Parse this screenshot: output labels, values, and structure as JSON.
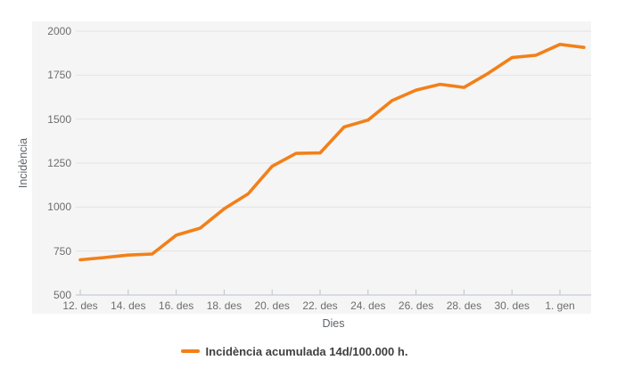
{
  "chart_data": {
    "type": "line",
    "title": "",
    "xlabel": "Dies",
    "ylabel": "Incidència",
    "x": [
      "12. des",
      "13. des",
      "14. des",
      "15. des",
      "16. des",
      "17. des",
      "18. des",
      "19. des",
      "20. des",
      "21. des",
      "22. des",
      "23. des",
      "24. des",
      "25. des",
      "26. des",
      "27. des",
      "28. des",
      "29. des",
      "30. des",
      "31. des",
      "1. gen",
      "2. gen"
    ],
    "series": [
      {
        "name": "Incidència acumulada 14d/100.000 h.",
        "color": "#f28019",
        "values": [
          700,
          713,
          727,
          733,
          840,
          880,
          990,
          1075,
          1232,
          1305,
          1308,
          1455,
          1495,
          1605,
          1665,
          1698,
          1680,
          1760,
          1850,
          1863,
          1925,
          1908
        ]
      }
    ],
    "y_ticks": [
      500,
      750,
      1000,
      1250,
      1500,
      1750,
      2000
    ],
    "x_tick_labels": [
      "12. des",
      "14. des",
      "16. des",
      "18. des",
      "20. des",
      "22. des",
      "24. des",
      "26. des",
      "28. des",
      "30. des",
      "1. gen"
    ],
    "ylim": [
      500,
      2000
    ],
    "grid": "horizontal",
    "legend_position": "bottom"
  },
  "legend": {
    "label": "Incidència acumulada 14d/100.000 h."
  },
  "colors": {
    "line": "#f28019",
    "grid": "#e3e3e3",
    "axis": "#b9c3cf",
    "panel_bg": "#f5f5f5",
    "tick_text": "#6d6d6d",
    "axis_title_text": "#5f6368",
    "legend_text": "#3f3f3f"
  }
}
